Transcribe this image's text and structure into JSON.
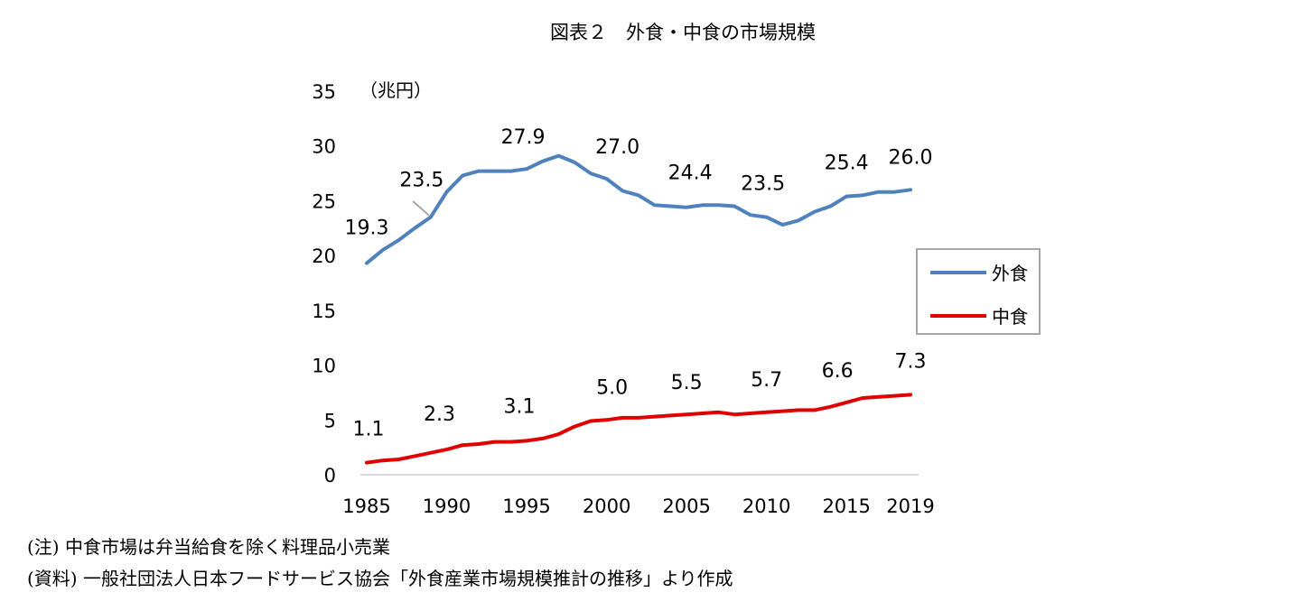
{
  "title": "図表２　外食・中食の市場規模",
  "notes": [
    "(注) 中食市場は弁当給食を除く料理品小売業",
    "(資料) 一般社団法人日本フードサービス協会「外食産業市場規模推計の推移」より作成"
  ],
  "chart_data": {
    "type": "line",
    "ylabel": "（兆円）",
    "ylim": [
      0,
      35
    ],
    "yticks": [
      0,
      5,
      10,
      15,
      20,
      25,
      30,
      35
    ],
    "xlim": [
      1985,
      2019
    ],
    "xticks": [
      1985,
      1990,
      1995,
      2000,
      2005,
      2010,
      2015,
      2019
    ],
    "grid": false,
    "legend": "right",
    "x": [
      1985,
      1986,
      1987,
      1988,
      1989,
      1990,
      1991,
      1992,
      1993,
      1994,
      1995,
      1996,
      1997,
      1998,
      1999,
      2000,
      2001,
      2002,
      2003,
      2004,
      2005,
      2006,
      2007,
      2008,
      2009,
      2010,
      2011,
      2012,
      2013,
      2014,
      2015,
      2016,
      2017,
      2018,
      2019
    ],
    "series": [
      {
        "name": "外食",
        "color": "#4f81bd",
        "values": [
          19.3,
          20.5,
          21.4,
          22.5,
          23.5,
          25.8,
          27.3,
          27.7,
          27.7,
          27.7,
          27.9,
          28.6,
          29.1,
          28.5,
          27.5,
          27.0,
          25.9,
          25.5,
          24.6,
          24.5,
          24.4,
          24.6,
          24.6,
          24.5,
          23.7,
          23.5,
          22.8,
          23.2,
          24.0,
          24.5,
          25.4,
          25.5,
          25.8,
          25.8,
          26.0
        ],
        "data_labels": [
          {
            "x": 1985,
            "text": "19.3"
          },
          {
            "x": 1989,
            "text": "23.5"
          },
          {
            "x": 1995,
            "text": "27.9"
          },
          {
            "x": 2000,
            "text": "27.0"
          },
          {
            "x": 2005,
            "text": "24.4"
          },
          {
            "x": 2010,
            "text": "23.5"
          },
          {
            "x": 2015,
            "text": "25.4"
          },
          {
            "x": 2019,
            "text": "26.0"
          }
        ]
      },
      {
        "name": "中食",
        "color": "#e00000",
        "values": [
          1.1,
          1.3,
          1.4,
          1.7,
          2.0,
          2.3,
          2.7,
          2.8,
          3.0,
          3.0,
          3.1,
          3.3,
          3.7,
          4.4,
          4.9,
          5.0,
          5.2,
          5.2,
          5.3,
          5.4,
          5.5,
          5.6,
          5.7,
          5.5,
          5.6,
          5.7,
          5.8,
          5.9,
          5.9,
          6.2,
          6.6,
          7.0,
          7.1,
          7.2,
          7.3
        ],
        "data_labels": [
          {
            "x": 1985,
            "text": "1.1"
          },
          {
            "x": 1990,
            "text": "2.3"
          },
          {
            "x": 1995,
            "text": "3.1"
          },
          {
            "x": 2000,
            "text": "5.0"
          },
          {
            "x": 2005,
            "text": "5.5"
          },
          {
            "x": 2010,
            "text": "5.7"
          },
          {
            "x": 2015,
            "text": "6.6"
          },
          {
            "x": 2019,
            "text": "7.3"
          }
        ]
      }
    ]
  }
}
